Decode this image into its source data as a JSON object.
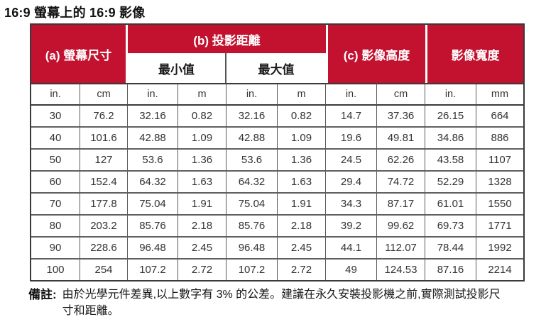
{
  "title": "16:9 螢幕上的 16:9 影像",
  "colors": {
    "header_background": "#c2122f",
    "header_text": "#ffffff",
    "outer_border": "#3a3a3a",
    "cell_border": "#585858",
    "body_text": "#333333"
  },
  "table": {
    "header": {
      "screen_size": "(a) 螢幕尺寸",
      "projection_distance": "(b) 投影距離",
      "min_value": "最小值",
      "max_value": "最大值",
      "image_height": "(c) 影像高度",
      "image_width": "影像寬度"
    },
    "units": [
      "in.",
      "cm",
      "in.",
      "m",
      "in.",
      "m",
      "in.",
      "cm",
      "in.",
      "mm"
    ],
    "rows": [
      [
        "30",
        "76.2",
        "32.16",
        "0.82",
        "32.16",
        "0.82",
        "14.7",
        "37.36",
        "26.15",
        "664"
      ],
      [
        "40",
        "101.6",
        "42.88",
        "1.09",
        "42.88",
        "1.09",
        "19.6",
        "49.81",
        "34.86",
        "886"
      ],
      [
        "50",
        "127",
        "53.6",
        "1.36",
        "53.6",
        "1.36",
        "24.5",
        "62.26",
        "43.58",
        "1107"
      ],
      [
        "60",
        "152.4",
        "64.32",
        "1.63",
        "64.32",
        "1.63",
        "29.4",
        "74.72",
        "52.29",
        "1328"
      ],
      [
        "70",
        "177.8",
        "75.04",
        "1.91",
        "75.04",
        "1.91",
        "34.3",
        "87.17",
        "61.01",
        "1550"
      ],
      [
        "80",
        "203.2",
        "85.76",
        "2.18",
        "85.76",
        "2.18",
        "39.2",
        "99.62",
        "69.73",
        "1771"
      ],
      [
        "90",
        "228.6",
        "96.48",
        "2.45",
        "96.48",
        "2.45",
        "44.1",
        "112.07",
        "78.44",
        "1992"
      ],
      [
        "100",
        "254",
        "107.2",
        "2.72",
        "107.2",
        "2.72",
        "49",
        "124.53",
        "87.16",
        "2214"
      ]
    ]
  },
  "note": {
    "label": "備註:",
    "text": "由於光學元件差異,以上數字有 3% 的公差。建議在永久安裝投影機之前,實際測試投影尺寸和距離。"
  }
}
